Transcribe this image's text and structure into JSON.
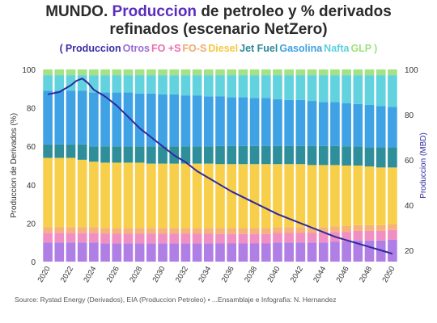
{
  "header": {
    "title_prefix": "MUNDO.",
    "title_highlight": "Produccion",
    "title_rest": "de petroleo y % derivados",
    "title_line2": "refinados (escenario NetZero)"
  },
  "legend": {
    "open": "(",
    "close": ")",
    "items": [
      {
        "label": "Produccion",
        "color": "#3b2ea8"
      },
      {
        "label": "Otros",
        "color": "#9b6ad9"
      },
      {
        "label": "FO +S",
        "color": "#f06ab0"
      },
      {
        "label": "FO-S",
        "color": "#f2a96a"
      },
      {
        "label": "Diesel",
        "color": "#f5c842"
      },
      {
        "label": "Jet Fuel",
        "color": "#2a8a96"
      },
      {
        "label": "Gasolina",
        "color": "#3ea0e2"
      },
      {
        "label": "Nafta",
        "color": "#5ecfdc"
      },
      {
        "label": "GLP",
        "color": "#9fe07e"
      }
    ]
  },
  "source": "Source: Rystad Energy (Derivados), EIA (Produccion Petroleo) • ...Ensamblaje e Infografia: N. Hernandez",
  "chart_data": {
    "type": "bar",
    "stacked": true,
    "x": [
      2020,
      2021,
      2022,
      2023,
      2024,
      2025,
      2026,
      2027,
      2028,
      2029,
      2030,
      2031,
      2032,
      2033,
      2034,
      2035,
      2036,
      2037,
      2038,
      2039,
      2040,
      2041,
      2042,
      2043,
      2044,
      2045,
      2046,
      2047,
      2048,
      2049,
      2050
    ],
    "x_tick_labels": [
      "2020",
      "2022",
      "2024",
      "2026",
      "2028",
      "2030",
      "2032",
      "2034",
      "2036",
      "2038",
      "2040",
      "2042",
      "2044",
      "2046",
      "2048",
      "2050"
    ],
    "ylabel_left": "Produccion de Derivados (%)",
    "ylim_left": [
      0,
      100
    ],
    "yticks_left": [
      "0",
      "20",
      "40",
      "60",
      "80",
      "100"
    ],
    "ylabel_right": "Produccion (MBD)",
    "ylim_right": [
      15,
      100
    ],
    "yticks_right": [
      "20",
      "40",
      "60",
      "80",
      "100"
    ],
    "series": [
      {
        "name": "Otros",
        "color": "#b07fe6",
        "values": [
          10,
          10,
          10,
          10,
          10,
          9.5,
          9.5,
          9.5,
          9.5,
          9.5,
          9.5,
          9.5,
          9.5,
          9.5,
          9.5,
          9.5,
          9.5,
          9.5,
          9.5,
          9.5,
          10,
          10,
          10,
          10,
          10,
          10.5,
          10.5,
          11,
          11,
          11,
          11.5
        ]
      },
      {
        "name": "FO +S",
        "color": "#f28fc2",
        "values": [
          5,
          5,
          5,
          5,
          5,
          5,
          5,
          5,
          5,
          5,
          5,
          5,
          5,
          5,
          5,
          5,
          5,
          5,
          5,
          5,
          5,
          5,
          5,
          5,
          5,
          5,
          5,
          5,
          5,
          5,
          5
        ]
      },
      {
        "name": "FO-S",
        "color": "#f5b27a",
        "values": [
          3,
          3,
          3,
          3,
          3,
          3,
          3,
          3,
          3,
          3,
          3,
          3,
          3,
          3,
          3,
          3,
          3,
          3,
          3,
          3,
          3,
          3,
          3,
          3,
          3,
          3,
          3,
          3,
          3,
          3,
          3
        ]
      },
      {
        "name": "Diesel",
        "color": "#f7cf4a",
        "values": [
          36,
          36,
          36,
          35,
          34,
          34,
          34,
          34,
          34,
          33.5,
          33.5,
          33.5,
          33.5,
          33.5,
          33.5,
          33.5,
          33.5,
          33.5,
          33.5,
          33.5,
          33,
          33,
          33,
          32.5,
          32.5,
          32,
          31.5,
          31,
          30.5,
          30,
          29.5
        ]
      },
      {
        "name": "Jet Fuel",
        "color": "#2e8f9b",
        "values": [
          7,
          7,
          7,
          8,
          8,
          8.5,
          8.5,
          8.5,
          8.5,
          9,
          9,
          9,
          9,
          9,
          9,
          9.5,
          9.5,
          9.5,
          9.5,
          9.5,
          9.5,
          9.5,
          9.5,
          10,
          10,
          10,
          10,
          10,
          10,
          10.5,
          10.5
        ]
      },
      {
        "name": "Gasolina",
        "color": "#3fa2e5",
        "values": [
          28,
          28,
          28,
          28,
          28,
          28,
          28,
          28,
          27.5,
          27.5,
          27,
          27,
          26.5,
          26.5,
          26,
          26,
          25.5,
          25.5,
          25,
          25,
          24.5,
          24,
          24,
          23.5,
          23,
          23,
          22.5,
          22,
          22,
          21.5,
          21
        ]
      },
      {
        "name": "Nafta",
        "color": "#62d2de",
        "values": [
          8,
          8,
          8,
          8,
          9,
          9,
          9,
          9,
          9.5,
          9.5,
          10,
          10,
          10.5,
          10.5,
          11,
          11,
          11.5,
          11.5,
          12,
          12,
          12.5,
          13,
          13,
          13.5,
          14,
          14,
          14.5,
          15,
          15.5,
          16,
          16.5
        ]
      },
      {
        "name": "GLP",
        "color": "#a3e383",
        "values": [
          3,
          3,
          3,
          3,
          3,
          3,
          3,
          3,
          3,
          3,
          3,
          3,
          3,
          3,
          3,
          3,
          3,
          3,
          3,
          3,
          3,
          3,
          3,
          3,
          3,
          3,
          3,
          3,
          3,
          3,
          3
        ]
      }
    ],
    "line": {
      "name": "Produccion",
      "color": "#2d2a9e",
      "axis": "right",
      "points": [
        [
          2020,
          89
        ],
        [
          2021,
          90
        ],
        [
          2022,
          93
        ],
        [
          2022.5,
          95
        ],
        [
          2023,
          96
        ],
        [
          2023.5,
          94
        ],
        [
          2024,
          91
        ],
        [
          2025,
          88
        ],
        [
          2026,
          84
        ],
        [
          2027,
          79
        ],
        [
          2028,
          74
        ],
        [
          2029,
          70
        ],
        [
          2030,
          66
        ],
        [
          2031,
          62
        ],
        [
          2032,
          59
        ],
        [
          2033,
          55
        ],
        [
          2034,
          52
        ],
        [
          2035,
          49
        ],
        [
          2036,
          46
        ],
        [
          2037,
          43.5
        ],
        [
          2038,
          41
        ],
        [
          2039,
          38.5
        ],
        [
          2040,
          36
        ],
        [
          2041,
          34
        ],
        [
          2042,
          32
        ],
        [
          2043,
          30
        ],
        [
          2044,
          28
        ],
        [
          2045,
          26
        ],
        [
          2046,
          24.5
        ],
        [
          2047,
          23
        ],
        [
          2048,
          21.5
        ],
        [
          2049,
          20
        ],
        [
          2050,
          18.5
        ]
      ]
    }
  }
}
